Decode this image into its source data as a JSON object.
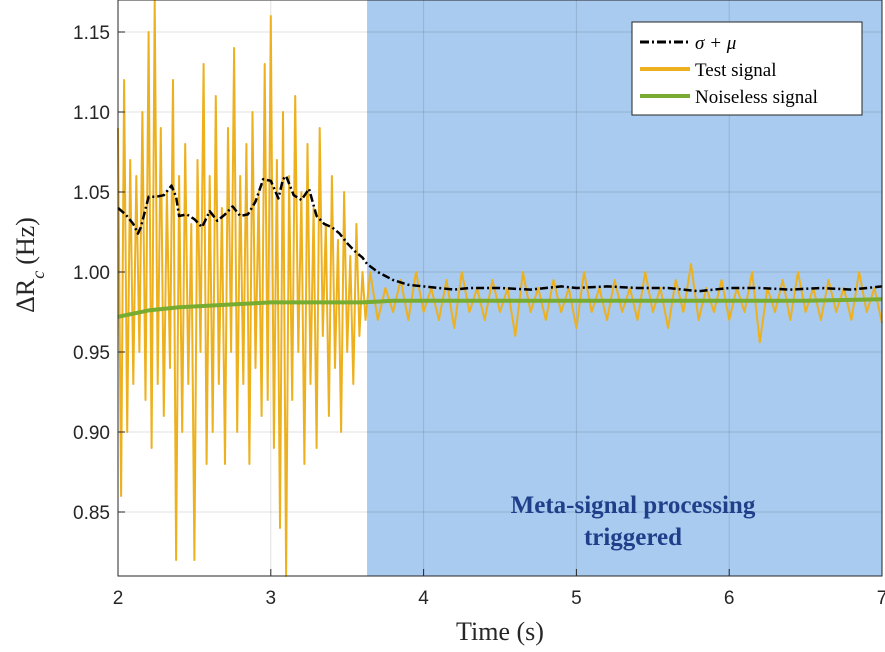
{
  "chart_data": {
    "type": "line",
    "title": "",
    "xlabel": "Time (s)",
    "ylabel": "ΔR_c (Hz)",
    "xlim": [
      2,
      7
    ],
    "ylim": [
      0.81,
      1.17
    ],
    "xticks": [
      "2",
      "3",
      "4",
      "5",
      "6",
      "7"
    ],
    "yticks": [
      "0.85",
      "0.90",
      "0.95",
      "1.00",
      "1.05",
      "1.10",
      "1.15"
    ],
    "grid": true,
    "legend_position": "top-right",
    "shaded_region": {
      "x_start": 3.63,
      "x_end": 7,
      "color": "#a9cbef"
    },
    "annotation": {
      "lines": [
        "Meta-signal processing",
        "triggered"
      ],
      "x": 5.4,
      "y": 0.845
    },
    "series": [
      {
        "name": "σ + μ",
        "style": "dash-dot",
        "color": "#000000",
        "x": [
          2.0,
          2.05,
          2.1,
          2.13,
          2.15,
          2.2,
          2.25,
          2.3,
          2.35,
          2.38,
          2.4,
          2.45,
          2.5,
          2.55,
          2.6,
          2.65,
          2.7,
          2.75,
          2.8,
          2.85,
          2.9,
          2.95,
          3.0,
          3.05,
          3.08,
          3.1,
          3.15,
          3.2,
          3.25,
          3.3,
          3.35,
          3.4,
          3.45,
          3.5,
          3.55,
          3.6,
          3.63,
          3.7,
          3.8,
          3.9,
          4.0,
          4.1,
          4.2,
          4.3,
          4.5,
          4.7,
          4.9,
          5.0,
          5.2,
          5.4,
          5.6,
          5.8,
          6.0,
          6.2,
          6.4,
          6.6,
          6.8,
          7.0
        ],
        "values": [
          1.04,
          1.036,
          1.03,
          1.024,
          1.028,
          1.047,
          1.047,
          1.048,
          1.054,
          1.047,
          1.035,
          1.036,
          1.033,
          1.028,
          1.038,
          1.032,
          1.036,
          1.041,
          1.035,
          1.036,
          1.044,
          1.058,
          1.057,
          1.046,
          1.058,
          1.06,
          1.048,
          1.045,
          1.052,
          1.035,
          1.03,
          1.028,
          1.024,
          1.018,
          1.013,
          1.009,
          1.005,
          1.0,
          0.995,
          0.992,
          0.991,
          0.99,
          0.989,
          0.99,
          0.99,
          0.989,
          0.991,
          0.99,
          0.991,
          0.99,
          0.99,
          0.988,
          0.99,
          0.99,
          0.989,
          0.99,
          0.989,
          0.991
        ]
      },
      {
        "name": "Test signal",
        "style": "solid",
        "color": "#edb120",
        "x": [
          2.0,
          2.02,
          2.04,
          2.06,
          2.08,
          2.1,
          2.12,
          2.14,
          2.16,
          2.18,
          2.2,
          2.22,
          2.24,
          2.26,
          2.28,
          2.3,
          2.32,
          2.34,
          2.36,
          2.38,
          2.4,
          2.42,
          2.44,
          2.46,
          2.48,
          2.5,
          2.52,
          2.54,
          2.56,
          2.58,
          2.6,
          2.62,
          2.64,
          2.66,
          2.68,
          2.7,
          2.72,
          2.74,
          2.76,
          2.78,
          2.8,
          2.82,
          2.84,
          2.86,
          2.88,
          2.9,
          2.92,
          2.94,
          2.96,
          2.98,
          3.0,
          3.02,
          3.04,
          3.06,
          3.08,
          3.1,
          3.12,
          3.14,
          3.16,
          3.18,
          3.2,
          3.22,
          3.24,
          3.26,
          3.28,
          3.3,
          3.32,
          3.34,
          3.36,
          3.38,
          3.4,
          3.42,
          3.44,
          3.46,
          3.48,
          3.5,
          3.52,
          3.54,
          3.56,
          3.58,
          3.6,
          3.62,
          3.65,
          3.7,
          3.75,
          3.8,
          3.85,
          3.9,
          3.95,
          4.0,
          4.05,
          4.1,
          4.15,
          4.2,
          4.25,
          4.3,
          4.35,
          4.4,
          4.45,
          4.5,
          4.55,
          4.6,
          4.65,
          4.7,
          4.75,
          4.8,
          4.85,
          4.9,
          4.95,
          5.0,
          5.05,
          5.1,
          5.15,
          5.2,
          5.25,
          5.3,
          5.35,
          5.4,
          5.45,
          5.5,
          5.55,
          5.6,
          5.65,
          5.7,
          5.75,
          5.8,
          5.85,
          5.9,
          5.95,
          6.0,
          6.05,
          6.1,
          6.15,
          6.2,
          6.25,
          6.3,
          6.35,
          6.4,
          6.45,
          6.5,
          6.55,
          6.6,
          6.65,
          6.7,
          6.75,
          6.8,
          6.85,
          6.9,
          6.95,
          7.0
        ],
        "values": [
          1.09,
          0.86,
          1.12,
          0.9,
          1.07,
          0.93,
          1.06,
          0.95,
          1.1,
          0.92,
          1.15,
          0.89,
          1.17,
          0.93,
          1.09,
          0.91,
          1.05,
          0.94,
          1.12,
          0.82,
          1.06,
          0.9,
          1.08,
          0.93,
          1.03,
          0.82,
          1.07,
          0.95,
          1.13,
          0.88,
          1.06,
          0.9,
          1.11,
          0.93,
          1.04,
          0.88,
          1.09,
          0.95,
          1.14,
          0.9,
          1.06,
          0.93,
          1.08,
          0.88,
          1.1,
          0.94,
          1.05,
          0.91,
          1.13,
          0.92,
          1.16,
          0.89,
          1.07,
          0.84,
          1.1,
          0.81,
          1.06,
          0.92,
          1.11,
          0.95,
          1.05,
          0.88,
          1.08,
          0.93,
          1.04,
          0.89,
          1.09,
          0.96,
          1.03,
          0.91,
          1.06,
          0.94,
          1.02,
          0.9,
          1.05,
          0.95,
          1.01,
          0.93,
          1.03,
          0.96,
          1.0,
          0.97,
          1.0,
          0.97,
          0.99,
          0.975,
          0.995,
          0.97,
          1.0,
          0.975,
          0.99,
          0.97,
          0.995,
          0.965,
          1.0,
          0.975,
          0.99,
          0.97,
          0.995,
          0.975,
          0.99,
          0.96,
          1.0,
          0.975,
          0.99,
          0.97,
          0.995,
          0.975,
          0.99,
          0.965,
          1.0,
          0.975,
          0.99,
          0.97,
          0.995,
          0.975,
          0.99,
          0.97,
          1.0,
          0.975,
          0.99,
          0.965,
          0.995,
          0.975,
          1.005,
          0.97,
          0.99,
          0.975,
          0.995,
          0.97,
          0.99,
          0.975,
          1.0,
          0.956,
          0.99,
          0.975,
          0.995,
          0.97,
          1.0,
          0.975,
          0.99,
          0.97,
          0.995,
          0.975,
          0.99,
          0.97,
          1.0,
          0.975,
          0.99,
          0.968
        ]
      },
      {
        "name": "Noiseless signal",
        "style": "solid",
        "color": "#77ac30",
        "x": [
          2.0,
          2.2,
          2.4,
          2.6,
          2.8,
          3.0,
          3.2,
          3.4,
          3.6,
          3.8,
          4.0,
          4.5,
          5.0,
          5.5,
          6.0,
          6.5,
          7.0
        ],
        "values": [
          0.972,
          0.976,
          0.978,
          0.979,
          0.98,
          0.981,
          0.981,
          0.981,
          0.981,
          0.982,
          0.982,
          0.982,
          0.982,
          0.982,
          0.982,
          0.982,
          0.983
        ]
      }
    ]
  }
}
